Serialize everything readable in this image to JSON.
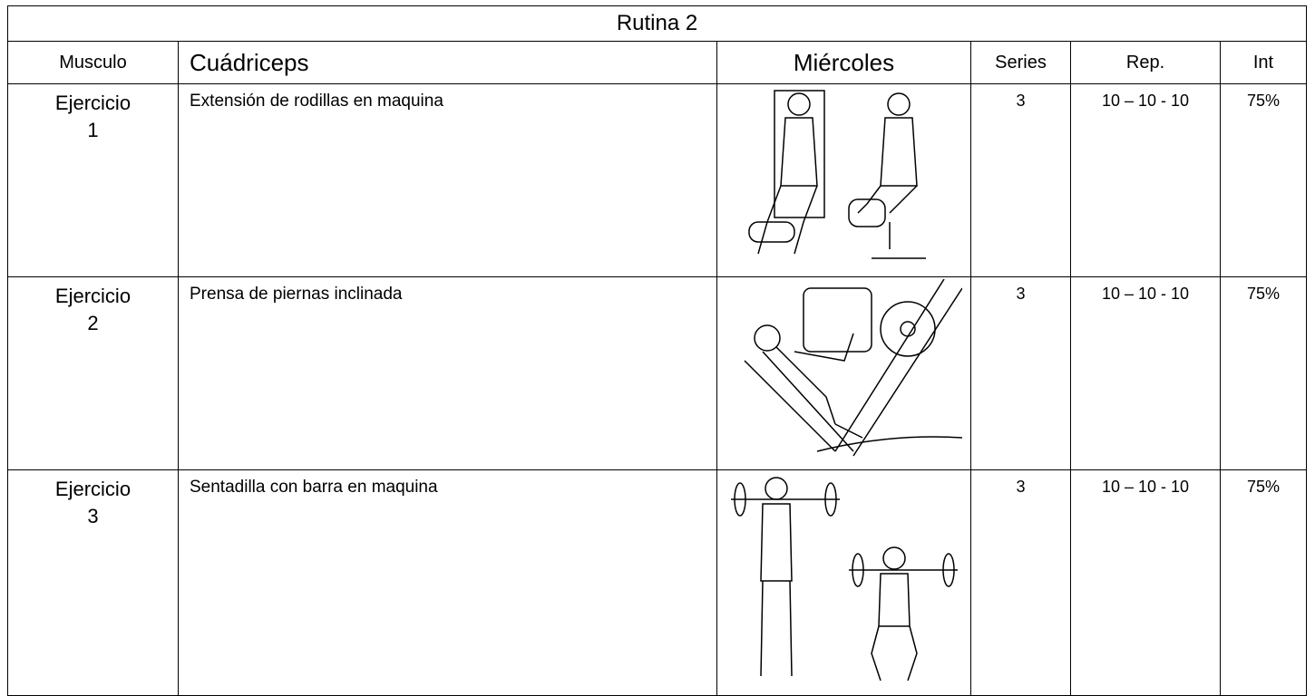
{
  "table": {
    "title": "Rutina  2",
    "header": [
      "Musculo",
      "Cuádriceps",
      "Miércoles",
      "Series",
      "Rep.",
      "Int"
    ],
    "rows": [
      {
        "label": "Ejercicio",
        "number": "1",
        "exercise": "Extensión de rodillas en maquina",
        "series": "3",
        "reps": "10 – 10 - 10",
        "intensity": "75%"
      },
      {
        "label": "Ejercicio",
        "number": "2",
        "exercise": "Prensa de piernas inclinada",
        "series": "3",
        "reps": "10 – 10 - 10",
        "intensity": "75%"
      },
      {
        "label": "Ejercicio",
        "number": "3",
        "exercise": "Sentadilla con barra en maquina",
        "series": "3",
        "reps": "10 – 10 - 10",
        "intensity": "75%"
      }
    ]
  }
}
